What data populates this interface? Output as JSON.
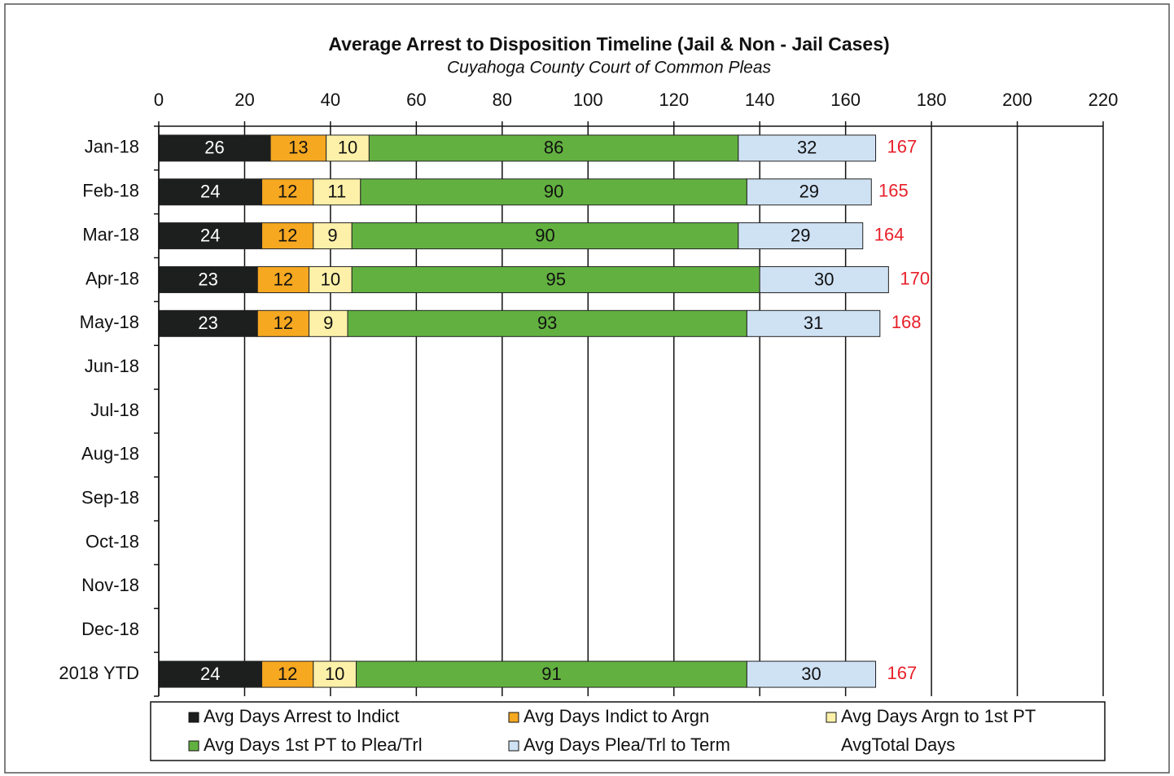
{
  "chart_data": {
    "type": "stacked_barh",
    "title": "Average Arrest to Disposition  Timeline (Jail & Non - Jail Cases)",
    "subtitle": "Cuyahoga County Court of Common Pleas",
    "categories": [
      "Jan-18",
      "Feb-18",
      "Mar-18",
      "Apr-18",
      "May-18",
      "Jun-18",
      "Jul-18",
      "Aug-18",
      "Sep-18",
      "Oct-18",
      "Nov-18",
      "Dec-18",
      "2018 YTD"
    ],
    "series": [
      {
        "name": "Avg Days Arrest to Indict",
        "color": "#1c1f1d",
        "values": [
          26,
          24,
          24,
          23,
          23,
          null,
          null,
          null,
          null,
          null,
          null,
          null,
          24
        ]
      },
      {
        "name": "Avg Days Indict to Argn",
        "color": "#f6a821",
        "values": [
          13,
          12,
          12,
          12,
          12,
          null,
          null,
          null,
          null,
          null,
          null,
          null,
          12
        ]
      },
      {
        "name": "Avg Days Argn to 1st PT",
        "color": "#fdf1a9",
        "values": [
          10,
          11,
          9,
          10,
          9,
          null,
          null,
          null,
          null,
          null,
          null,
          null,
          10
        ]
      },
      {
        "name": "Avg Days 1st PT to Plea/Trl",
        "color": "#62b140",
        "values": [
          86,
          90,
          90,
          95,
          93,
          null,
          null,
          null,
          null,
          null,
          null,
          null,
          91
        ]
      },
      {
        "name": "Avg Days Plea/Trl to Term",
        "color": "#cfe2f4",
        "values": [
          32,
          29,
          29,
          30,
          31,
          null,
          null,
          null,
          null,
          null,
          null,
          null,
          30
        ]
      }
    ],
    "totals": {
      "name": "AvgTotal Days",
      "color": "#e8202a",
      "values": [
        167,
        165,
        164,
        170,
        168,
        null,
        null,
        null,
        null,
        null,
        null,
        null,
        167
      ]
    },
    "xlim": [
      0,
      220
    ],
    "xticks": [
      0,
      20,
      40,
      60,
      80,
      100,
      120,
      140,
      160,
      180,
      200,
      220
    ],
    "grid": true
  }
}
